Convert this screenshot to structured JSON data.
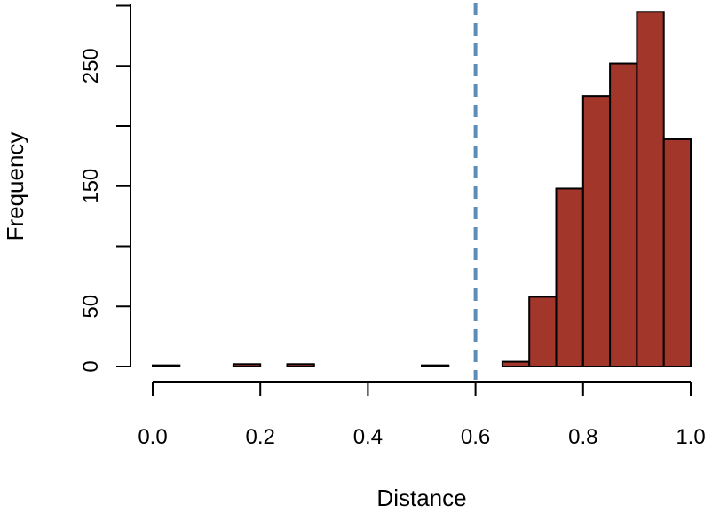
{
  "chart_data": {
    "type": "bar",
    "title": "",
    "xlabel": "Distance",
    "ylabel": "Frequency",
    "xlim": [
      0,
      1.0
    ],
    "ylim": [
      0,
      300
    ],
    "x_ticks": [
      "0.0",
      "0.2",
      "0.4",
      "0.6",
      "0.8",
      "1.0"
    ],
    "y_ticks": [
      "0",
      "50",
      "150",
      "250"
    ],
    "bin_width": 0.05,
    "bins": [
      {
        "start": 0.0,
        "end": 0.05,
        "count": 1
      },
      {
        "start": 0.05,
        "end": 0.1,
        "count": 0
      },
      {
        "start": 0.1,
        "end": 0.15,
        "count": 0
      },
      {
        "start": 0.15,
        "end": 0.2,
        "count": 2
      },
      {
        "start": 0.2,
        "end": 0.25,
        "count": 0
      },
      {
        "start": 0.25,
        "end": 0.3,
        "count": 2
      },
      {
        "start": 0.3,
        "end": 0.35,
        "count": 0
      },
      {
        "start": 0.35,
        "end": 0.4,
        "count": 0
      },
      {
        "start": 0.4,
        "end": 0.45,
        "count": 0
      },
      {
        "start": 0.45,
        "end": 0.5,
        "count": 0
      },
      {
        "start": 0.5,
        "end": 0.55,
        "count": 1
      },
      {
        "start": 0.55,
        "end": 0.6,
        "count": 0
      },
      {
        "start": 0.6,
        "end": 0.65,
        "count": 0
      },
      {
        "start": 0.65,
        "end": 0.7,
        "count": 4
      },
      {
        "start": 0.7,
        "end": 0.75,
        "count": 58
      },
      {
        "start": 0.75,
        "end": 0.8,
        "count": 148
      },
      {
        "start": 0.8,
        "end": 0.85,
        "count": 225
      },
      {
        "start": 0.85,
        "end": 0.9,
        "count": 252
      },
      {
        "start": 0.9,
        "end": 0.95,
        "count": 295
      },
      {
        "start": 0.95,
        "end": 1.0,
        "count": 189
      }
    ],
    "reference_line": {
      "x": 0.6,
      "style": "dashed",
      "color": "#5b8db8"
    },
    "bar_color": "#a3362b",
    "bar_edge_color": "#000000",
    "grid": false,
    "legend": "none"
  }
}
